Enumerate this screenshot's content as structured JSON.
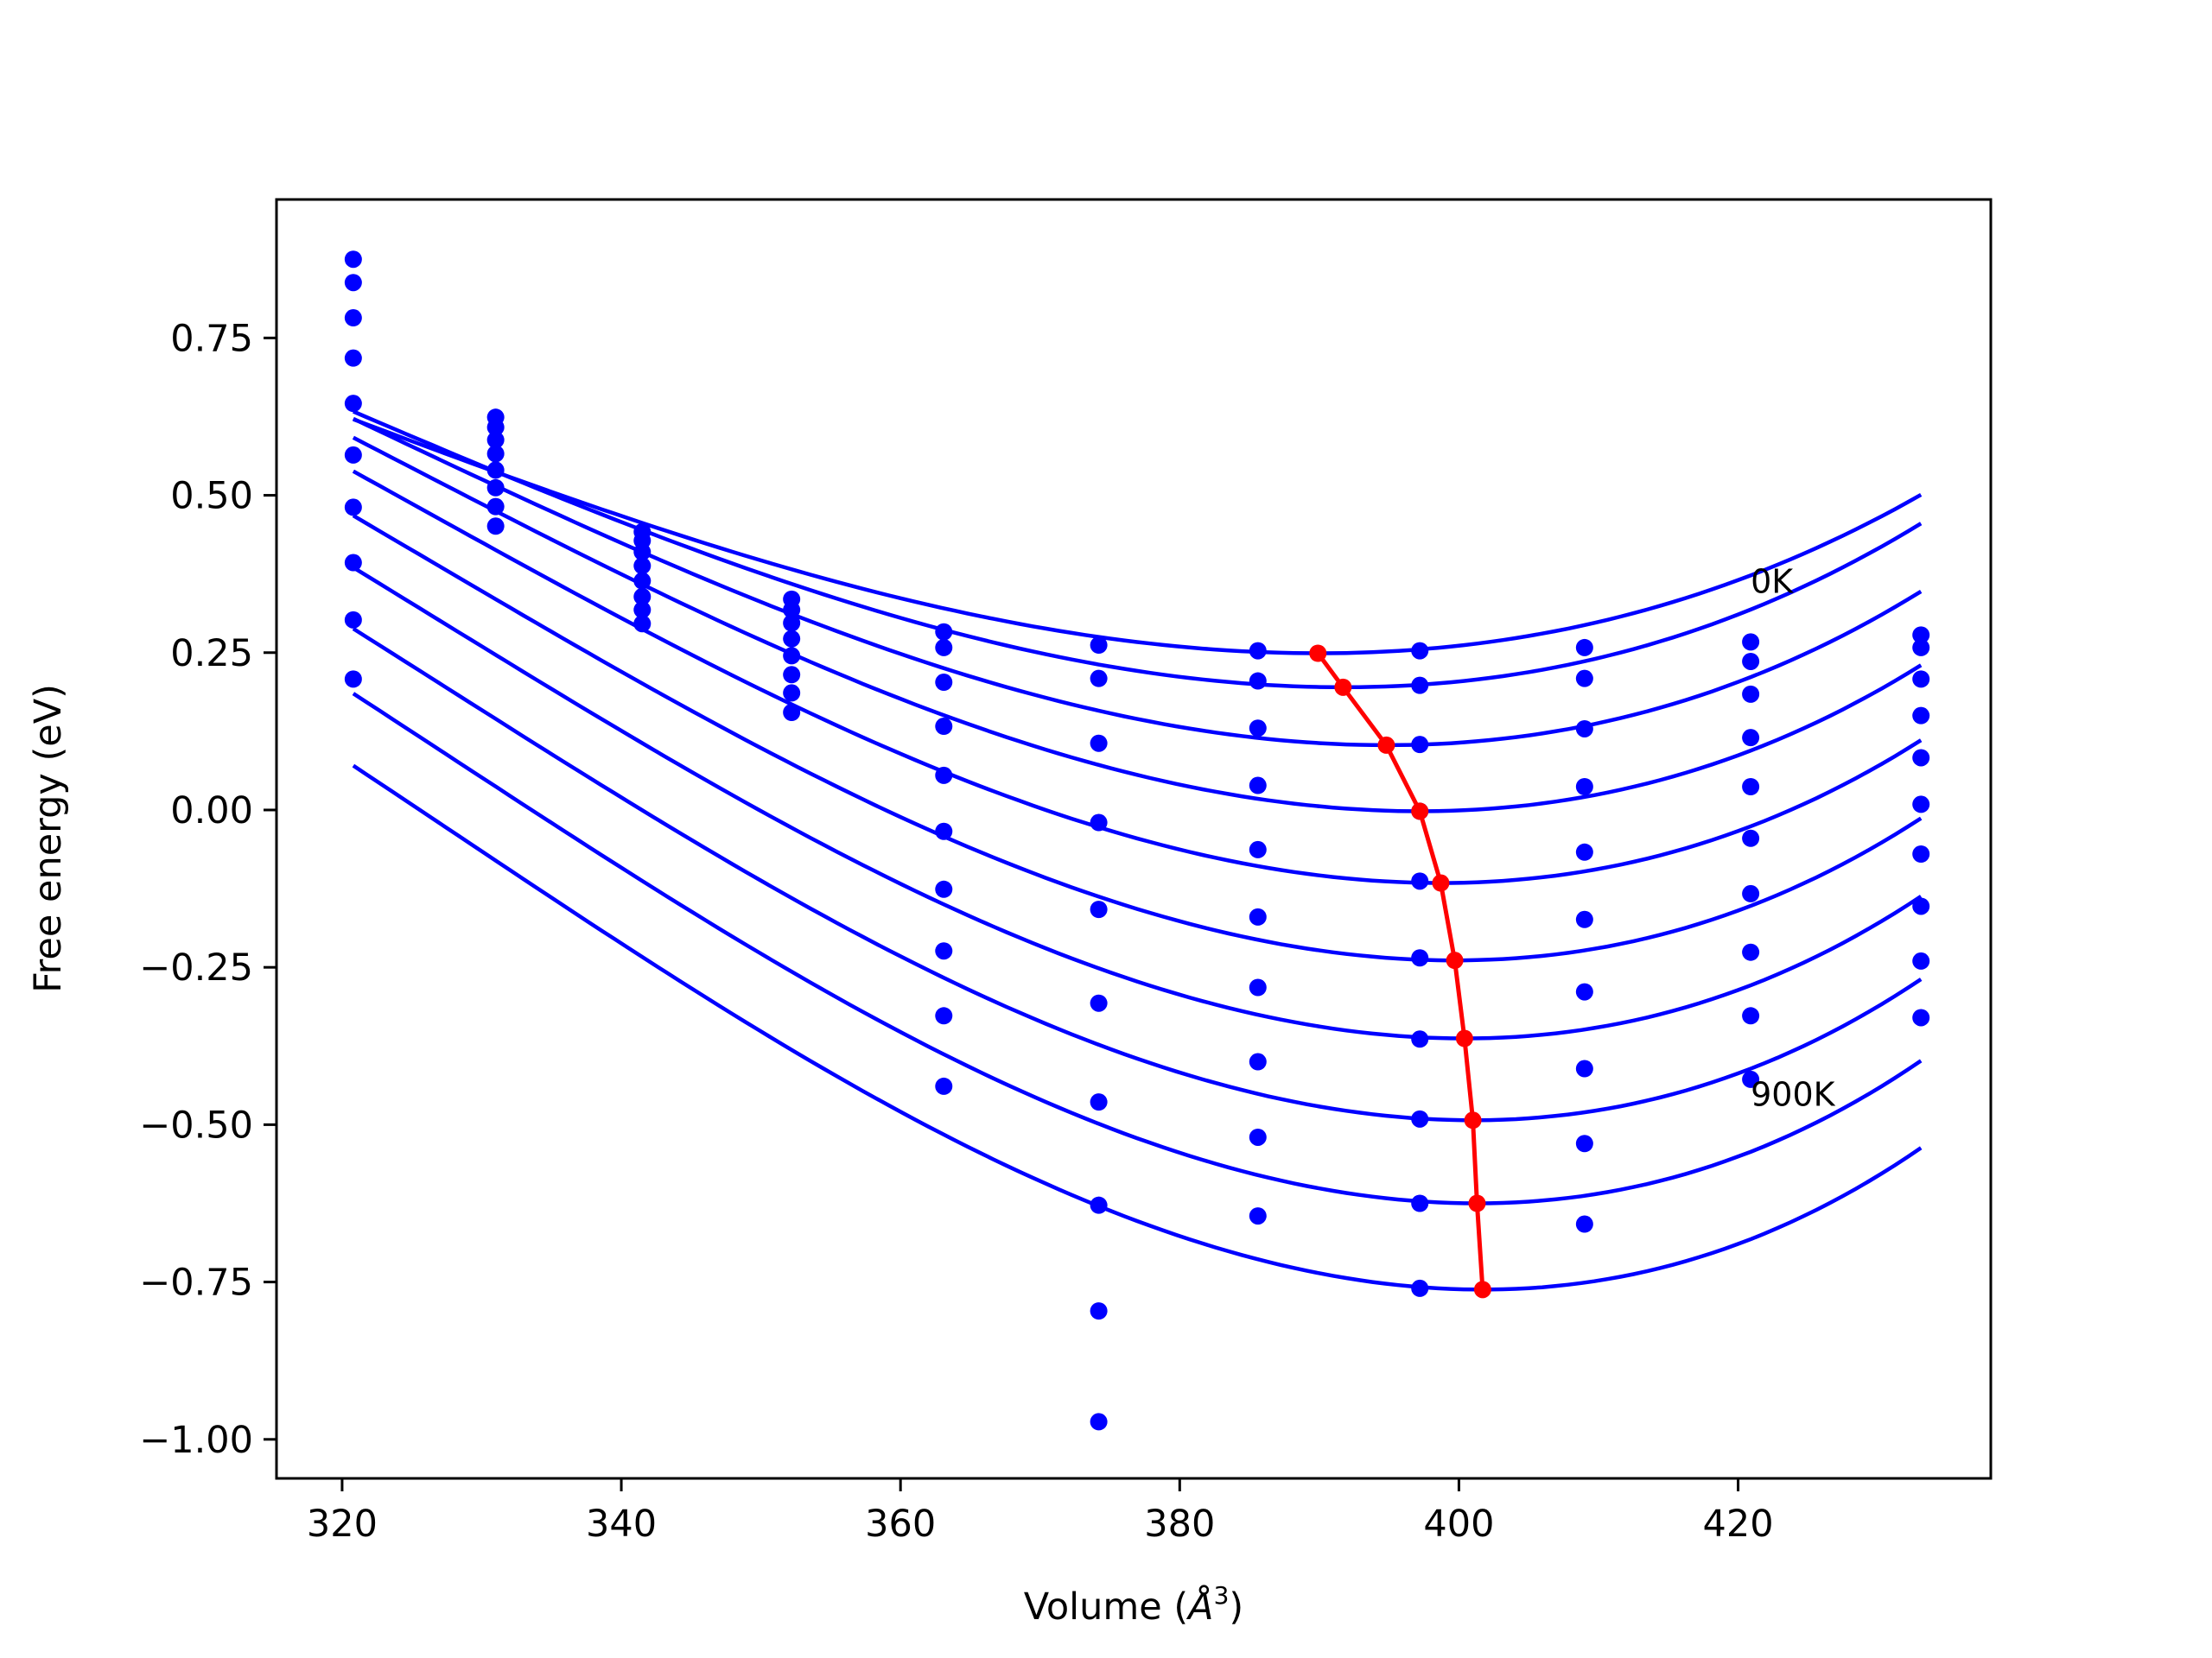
{
  "chart_data": {
    "type": "line",
    "title": "",
    "xlabel": "Volume (",
    "xlabel_symbol": "Å",
    "xlabel_power": "3",
    "xlabel_close": ")",
    "ylabel": "Free energy (eV)",
    "xlim": [
      315.3,
      438.1
    ],
    "ylim": [
      -1.062,
      0.97
    ],
    "x_ticks": [
      320,
      340,
      360,
      380,
      400,
      420
    ],
    "x_tick_labels": [
      "320",
      "340",
      "360",
      "380",
      "400",
      "420"
    ],
    "y_ticks": [
      0.75,
      0.5,
      0.25,
      0.0,
      -0.25,
      -0.5,
      -0.75,
      -1.0
    ],
    "y_tick_labels": [
      "0.75",
      "0.50",
      "0.25",
      "0.00",
      "−0.25",
      "−0.50",
      "−0.75",
      "−1.00"
    ],
    "grid": false,
    "legend": "none",
    "colors": {
      "curves": "#0000ff",
      "minima": "#ff0000",
      "frame": "#000000"
    },
    "annotations": [
      {
        "text": "0K",
        "x": 420.9,
        "y": 0.345
      },
      {
        "text": "900K",
        "x": 420.9,
        "y": -0.47
      }
    ],
    "data_points_x": [
      320.8,
      331.0,
      341.5,
      352.2,
      363.1,
      374.2,
      385.6,
      397.2,
      409.0,
      420.9,
      433.1
    ],
    "data_points_y": [
      [
        0.875,
        0.624,
        0.442,
        0.335,
        0.283,
        0.262,
        0.253,
        0.253,
        0.258,
        0.267,
        0.278
      ],
      [
        0.838,
        0.608,
        0.428,
        0.318,
        0.258,
        0.209,
        0.205,
        0.198,
        0.209,
        0.236,
        0.258
      ],
      [
        0.782,
        0.588,
        0.41,
        0.297,
        0.203,
        0.106,
        0.13,
        0.104,
        0.129,
        0.184,
        0.208
      ],
      [
        0.718,
        0.566,
        0.388,
        0.272,
        0.133,
        -0.02,
        0.039,
        -0.002,
        0.037,
        0.115,
        0.15
      ],
      [
        0.646,
        0.54,
        0.364,
        0.245,
        0.055,
        -0.158,
        -0.063,
        -0.113,
        -0.067,
        0.037,
        0.083
      ],
      [
        0.564,
        0.512,
        0.339,
        0.215,
        -0.034,
        -0.307,
        -0.17,
        -0.235,
        -0.174,
        -0.045,
        0.009
      ],
      [
        0.481,
        0.482,
        0.318,
        0.186,
        -0.126,
        -0.464,
        -0.282,
        -0.364,
        -0.289,
        -0.133,
        -0.07
      ],
      [
        0.393,
        0.451,
        0.296,
        0.155,
        -0.224,
        -0.628,
        -0.4,
        -0.491,
        -0.411,
        -0.226,
        -0.153
      ],
      [
        0.302,
        null,
        null,
        null,
        -0.327,
        -0.796,
        -0.52,
        -0.625,
        -0.53,
        -0.327,
        -0.24
      ],
      [
        0.208,
        null,
        null,
        null,
        -0.439,
        -0.972,
        -0.645,
        -0.76,
        -0.658,
        -0.428,
        -0.33
      ]
    ],
    "fit_curves": [
      {
        "a": 0.000113,
        "v0": 389.9,
        "e0": 0.249
      },
      {
        "a": 0.000128,
        "v0": 391.7,
        "e0": 0.195
      },
      {
        "a": 0.000142,
        "v0": 394.8,
        "e0": 0.103
      },
      {
        "a": 0.000155,
        "v0": 397.2,
        "e0": -0.002
      },
      {
        "a": 0.000166,
        "v0": 398.7,
        "e0": -0.116
      },
      {
        "a": 0.000176,
        "v0": 399.7,
        "e0": -0.239
      },
      {
        "a": 0.000184,
        "v0": 400.4,
        "e0": -0.363
      },
      {
        "a": 0.00019,
        "v0": 401.0,
        "e0": -0.493
      },
      {
        "a": 0.000196,
        "v0": 401.3,
        "e0": -0.625
      },
      {
        "a": 0.0002,
        "v0": 401.7,
        "e0": -0.762
      }
    ],
    "fit_range": [
      320.8,
      433.1
    ],
    "minima": {
      "x": [
        389.9,
        391.7,
        394.8,
        397.2,
        398.7,
        399.7,
        400.4,
        401.0,
        401.3,
        401.7
      ],
      "y": [
        0.249,
        0.195,
        0.103,
        -0.002,
        -0.116,
        -0.239,
        -0.363,
        -0.493,
        -0.625,
        -0.762
      ]
    }
  }
}
